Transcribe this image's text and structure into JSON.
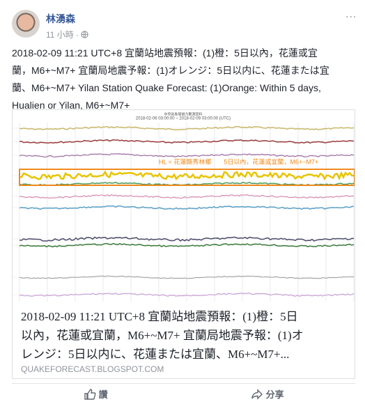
{
  "header": {
    "name": "林湧森",
    "time": "11 小時 · ",
    "more": "..."
  },
  "post": {
    "lines": [
      "2018-02-09 11:21 UTC+8 宜蘭站地震預報：(1)橙：5日以內，花蓮或宜",
      "蘭，M6+~M7+ 宜蘭局地震予報：(1)オレンジ：5日以内に、花蓮または宜",
      "蘭、M6+~M7+ Yilan Station Quake Forecast: (1)Orange: Within 5 days,",
      "Hualien or Yilan, M6+~M7+"
    ]
  },
  "card": {
    "image_title": "中央氣象局磁力觀測資料",
    "image_range": "2018-02-06 03:00:00 ~ 2018-02-09 03:00:00 (UTC)",
    "image_annotation": "HL = 花蓮縣秀林鄉　　5日以內，花蓮或宜蘭，M6+~M7+",
    "title_lines": [
      "2018-02-09 11:21 UTC+8 宜蘭站地震預報：(1)橙：5日",
      "以內，花蓮或宜蘭，M6+~M7+ 宜蘭局地震予報：(1)オ",
      "レンジ：5日以内に、花蓮または宜蘭、M6+~M7+..."
    ],
    "domain": "QUAKEFORECAST.BLOGSPOT.COM"
  },
  "actions": {
    "like": "讚",
    "share": "分享"
  }
}
